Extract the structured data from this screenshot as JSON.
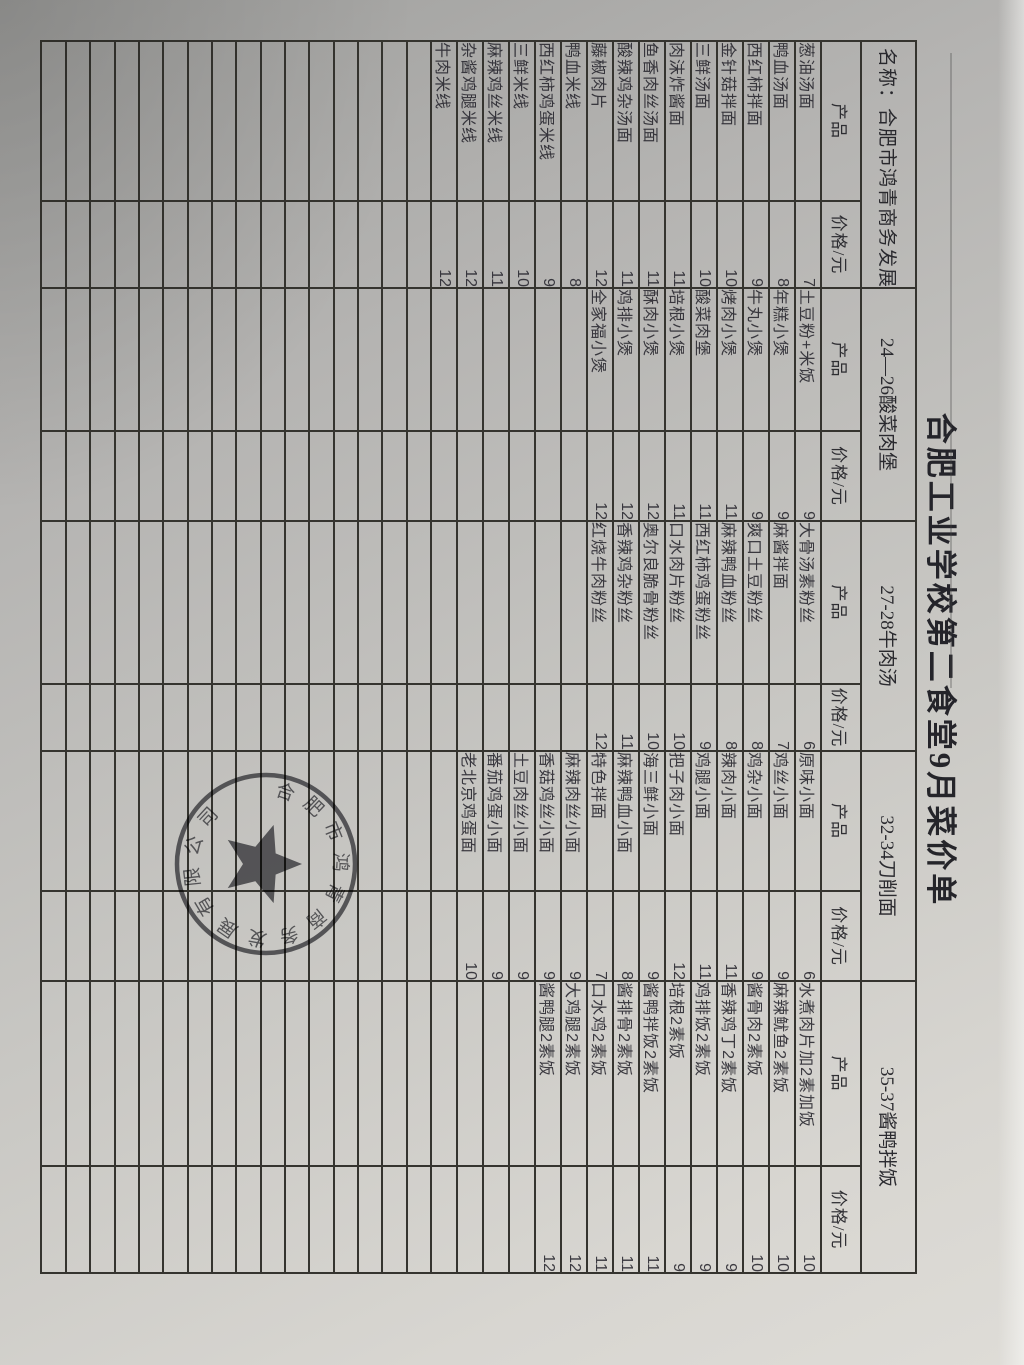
{
  "title": "合肥工业学校第二食堂9月菜价单",
  "company_label": "名称：合肥市鸿青商务发展有限公司",
  "labels": {
    "product": "产品",
    "price": "价格/元"
  },
  "sections": [
    {
      "header": "",
      "items": [
        [
          "葱油汤面",
          "7"
        ],
        [
          "鸭血汤面",
          "8"
        ],
        [
          "西红柿拌面",
          "9"
        ],
        [
          "金针菇拌面",
          "10"
        ],
        [
          "三鲜汤面",
          "10"
        ],
        [
          "肉沫炸酱面",
          "11"
        ],
        [
          "鱼香肉丝汤面",
          "11"
        ],
        [
          "酸辣鸡杂汤面",
          "11"
        ],
        [
          "藤椒肉片",
          "12"
        ],
        [
          "鸭血米线",
          "8"
        ],
        [
          "西红柿鸡蛋米线",
          "9"
        ],
        [
          "三鲜米线",
          "10"
        ],
        [
          "麻辣鸡丝米线",
          "11"
        ],
        [
          "杂酱鸡腿米线",
          "12"
        ],
        [
          "牛肉米线",
          "12"
        ]
      ]
    },
    {
      "header": "24—26酸菜肉堡",
      "items": [
        [
          "土豆粉+米饭",
          "9"
        ],
        [
          "年糕小煲",
          "9"
        ],
        [
          "牛丸小煲",
          "9"
        ],
        [
          "烤肉小煲",
          "11"
        ],
        [
          "酸菜肉堡",
          "11"
        ],
        [
          "培根小煲",
          "11"
        ],
        [
          "酥肉小煲",
          "12"
        ],
        [
          "鸡排小煲",
          "12"
        ],
        [
          "全家福小煲",
          "12"
        ]
      ]
    },
    {
      "header": "27-28牛肉汤",
      "items": [
        [
          "大骨汤素粉丝",
          "6"
        ],
        [
          "麻酱拌面",
          "7"
        ],
        [
          "爽口土豆粉丝",
          "8"
        ],
        [
          "麻辣鸭血粉丝",
          "8"
        ],
        [
          "西红柿鸡蛋粉丝",
          "9"
        ],
        [
          "口水肉片粉丝",
          "10"
        ],
        [
          "奥尔良脆骨粉丝",
          "10"
        ],
        [
          "香辣鸡杂粉丝",
          "11"
        ],
        [
          "红烧牛肉粉丝",
          "12"
        ]
      ]
    },
    {
      "header": "32-34刀削面",
      "items": [
        [
          "原味小面",
          "6"
        ],
        [
          "鸡丝小面",
          "9"
        ],
        [
          "鸡杂小面",
          "9"
        ],
        [
          "辣肉小面",
          "11"
        ],
        [
          "鸡腿小面",
          "11"
        ],
        [
          "把子肉小面",
          "12"
        ],
        [
          "海三鲜小面",
          "9"
        ],
        [
          "麻辣鸭血小面",
          "8"
        ],
        [
          "特色拌面",
          "7"
        ],
        [
          "麻辣肉丝小面",
          "9"
        ],
        [
          "香菇鸡丝小面",
          "9"
        ],
        [
          "土豆肉丝小面",
          "9"
        ],
        [
          "番茄鸡蛋小面",
          "9"
        ],
        [
          "老北京鸡蛋面",
          "10"
        ]
      ]
    },
    {
      "header": "35-37酱鸭拌饭",
      "items": [
        [
          "水煮肉片加2素加饭",
          "10"
        ],
        [
          "麻辣鱿鱼2素饭",
          "10"
        ],
        [
          "酱骨肉2素饭",
          "10"
        ],
        [
          "香辣鸡丁2素饭",
          "9"
        ],
        [
          "鸡排饭2素饭",
          "9"
        ],
        [
          "培根2素饭",
          "9"
        ],
        [
          "酱鸭拌饭2素饭",
          "11"
        ],
        [
          "酱排骨2素饭",
          "11"
        ],
        [
          "口水鸡2素饭",
          "11"
        ],
        [
          "大鸡腿2素饭",
          "12"
        ],
        [
          "酱鸭腿2素饭",
          "12"
        ]
      ]
    }
  ],
  "stamp": {
    "company": "合肥市鸿青商务发展有限公司"
  }
}
